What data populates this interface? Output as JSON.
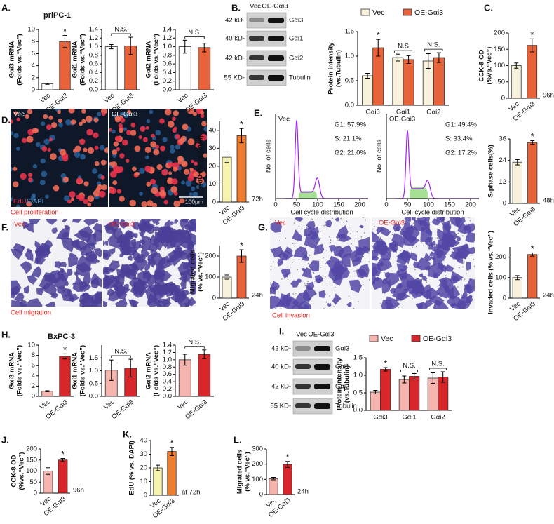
{
  "panel_labels": [
    "A.",
    "B.",
    "C.",
    "D.",
    "E.",
    "F.",
    "G.",
    "H.",
    "I.",
    "J.",
    "K.",
    "L."
  ],
  "cell_lines": [
    "priPC-1",
    "BxPC-3"
  ],
  "blots": [
    {
      "lanes": [
        "Vec",
        "OE-Gαi3"
      ],
      "sizes": [
        "42 kD-",
        "40 kD-",
        "42 kD-",
        "55 KD-"
      ],
      "proteins": [
        "Gαi3",
        "Gαi1",
        "Gαi2",
        "Tubulin"
      ]
    },
    {
      "lanes": [
        "Vec",
        "OE-Gαi3"
      ],
      "sizes": [
        "42 kD-",
        "40 kD-",
        "42 kD-",
        "55 KD-"
      ],
      "proteins": [
        "Gαi3",
        "Gαi1",
        "Gαi2",
        "Tubulin"
      ]
    }
  ],
  "images": {
    "edu": {
      "groups": [
        "Vec",
        "OE-Gαi3"
      ],
      "stain": [
        "EdU",
        "/DAPI"
      ],
      "scale": "100μm",
      "caption": "Cell proliferation"
    },
    "migration": {
      "groups": [
        "Vec",
        "OE-Gαi3"
      ],
      "caption": "Cell migration"
    },
    "invasion": {
      "groups": [
        "Vec",
        "OE-Gαi3"
      ],
      "caption": "Cell invasion"
    }
  },
  "flow": {
    "ylabel": "No. of cells",
    "xlabel": "Cell cycle distribution",
    "xlim": [
      0,
      220
    ],
    "xticks": [
      0,
      50,
      100,
      150,
      200
    ],
    "samples": [
      {
        "name": "Vec",
        "stats": [
          "G1: 57.9%",
          "S: 21.1%",
          "G2: 21.0%"
        ]
      },
      {
        "name": "OE-Gαi3",
        "stats": [
          "G1: 49.4%",
          "S: 33.4%",
          "G2: 17.2%"
        ]
      }
    ]
  },
  "chart_data": [
    {
      "type": "bar",
      "ylabel": [
        "Gαi3 mRNA",
        "(Folds vs.“Vec”)"
      ],
      "categories": [
        "Vec",
        "OE-Gαi3"
      ],
      "colors": [
        "#ffffff",
        "#e8623a"
      ],
      "values": [
        1,
        8
      ],
      "errors": [
        0.1,
        1
      ],
      "significance": "*",
      "ylim": [
        0,
        10
      ],
      "yticks": [
        0,
        2,
        4,
        6,
        8,
        10
      ]
    },
    {
      "type": "bar",
      "ylabel": [
        "Gαi1 mRNA",
        "(Folds vs.“Vec”)"
      ],
      "categories": [
        "Vec",
        "OE-Gαi3"
      ],
      "colors": [
        "#ffffff",
        "#e8623a"
      ],
      "values": [
        1,
        1.02
      ],
      "errors": [
        0.05,
        0.2
      ],
      "significance": "N.S.",
      "ylim": [
        0,
        1.4
      ],
      "yticks": [
        {
          "value": 0,
          "label": "0.0"
        },
        {
          "value": 0.2,
          "label": "0.2"
        },
        {
          "value": 0.4,
          "label": "0.4"
        },
        {
          "value": 0.6,
          "label": "0.6"
        },
        {
          "value": 0.8,
          "label": "0.8"
        },
        {
          "value": 1,
          "label": "1.0"
        },
        {
          "value": 1.2,
          "label": "1.2"
        },
        {
          "value": 1.4,
          "label": "1.4"
        }
      ]
    },
    {
      "type": "bar",
      "ylabel": [
        "Gαi2 mRNA",
        "(Folds vs.“Vec”)"
      ],
      "categories": [
        "Vec",
        "OE-Gαi3"
      ],
      "colors": [
        "#ffffff",
        "#e8623a"
      ],
      "values": [
        1,
        0.98
      ],
      "errors": [
        0.15,
        0.1
      ],
      "significance": "N.S.",
      "ylim": [
        0,
        1.4
      ],
      "yticks": [
        {
          "value": 0,
          "label": "0.0"
        },
        {
          "value": 0.2,
          "label": "0.2"
        },
        {
          "value": 0.4,
          "label": "0.4"
        },
        {
          "value": 0.6,
          "label": "0.6"
        },
        {
          "value": 0.8,
          "label": "0.8"
        },
        {
          "value": 1,
          "label": "1.0"
        },
        {
          "value": 1.2,
          "label": "1.2"
        },
        {
          "value": 1.4,
          "label": "1.4"
        }
      ]
    },
    {
      "type": "bar",
      "ylabel": [
        "Protein intensity",
        "(vs.Tubulin)"
      ],
      "categories": [
        "Gαi3",
        "Gαi1",
        "Gαi2"
      ],
      "series": [
        {
          "name": "Vec",
          "color": "#f8f1dc",
          "values": [
            0.6,
            0.97,
            0.9
          ],
          "errors": [
            0.05,
            0.07,
            0.15
          ]
        },
        {
          "name": "OE-Gαi3",
          "color": "#e8623a",
          "values": [
            1.17,
            0.93,
            0.97
          ],
          "errors": [
            0.17,
            0.08,
            0.1
          ]
        }
      ],
      "significance": [
        "*",
        "N.S",
        "N.S."
      ],
      "ylim": [
        0,
        1.5
      ],
      "yticks": [
        {
          "value": 0,
          "label": "0.0"
        },
        {
          "value": 0.5,
          "label": "0.5"
        },
        {
          "value": 1,
          "label": "1.0"
        },
        {
          "value": 1.5,
          "label": "1.5"
        }
      ]
    },
    {
      "type": "bar",
      "ylabel": [
        "CCK-8 OD",
        "(%vs.“Vec”)"
      ],
      "categories": [
        "Vec",
        "OE-Gαi3"
      ],
      "colors": [
        "#f8f1dc",
        "#e8623a"
      ],
      "values": [
        100,
        162
      ],
      "errors": [
        8,
        20
      ],
      "significance": "*",
      "note": "96h",
      "ylim": [
        0,
        200
      ],
      "yticks": [
        0,
        50,
        100,
        150,
        200
      ]
    },
    {
      "type": "bar",
      "ylabel": [
        "EdU (% vs.DAPI)"
      ],
      "categories": [
        "Vec",
        "OE-Gαi3"
      ],
      "colors": [
        "#f7f4b0",
        "#ee7d2f"
      ],
      "values": [
        25,
        37
      ],
      "errors": [
        3,
        4
      ],
      "significance": "*",
      "note": "72h",
      "ylim": [
        0,
        45
      ],
      "yticks": [
        0,
        10,
        20,
        30,
        40
      ]
    },
    {
      "type": "bar",
      "ylabel": [
        "S-phase cells(%)"
      ],
      "categories": [
        "Vec",
        "OE-Gαi3"
      ],
      "colors": [
        "#f8f1dc",
        "#e8623a"
      ],
      "values": [
        23,
        34
      ],
      "errors": [
        1.5,
        1
      ],
      "significance": "*",
      "note": "48h",
      "ylim": [
        0,
        36
      ],
      "yticks": [
        0,
        12,
        24,
        36
      ]
    },
    {
      "type": "bar",
      "ylabel": [
        "Migrated cells",
        "(% vs.“Vec”)"
      ],
      "categories": [
        "Vec",
        "OE-Gαi3"
      ],
      "colors": [
        "#f8f1dc",
        "#e8623a"
      ],
      "values": [
        100,
        200
      ],
      "errors": [
        10,
        30
      ],
      "significance": "*",
      "note": "24h",
      "ylim": [
        0,
        250
      ],
      "yticks": [
        0,
        100,
        200
      ]
    },
    {
      "type": "bar",
      "ylabel": [
        "Invaded cells (% vs.“Vec”)"
      ],
      "categories": [
        "Vec",
        "OE-Gαi3"
      ],
      "colors": [
        "#f8f1dc",
        "#e8623a"
      ],
      "values": [
        100,
        213
      ],
      "errors": [
        10,
        8
      ],
      "significance": "*",
      "note": "24h",
      "ylim": [
        0,
        250
      ],
      "yticks": [
        0,
        100,
        200
      ]
    },
    {
      "type": "bar",
      "ylabel": [
        "Gαi3 mRNA",
        "(Folds vs.“Vec”)"
      ],
      "categories": [
        "Vec",
        "OE-Gαi3"
      ],
      "colors": [
        "#f5b5ae",
        "#d8262a"
      ],
      "values": [
        1,
        7.8
      ],
      "errors": [
        0.1,
        0.5
      ],
      "significance": "*",
      "ylim": [
        0,
        10
      ],
      "yticks": [
        0,
        2,
        4,
        6,
        8,
        10
      ]
    },
    {
      "type": "bar",
      "ylabel": [
        "Gαi1 mRNA",
        "(Folds vs.“Vec”)"
      ],
      "categories": [
        "Vec",
        "OE-Gαi3"
      ],
      "colors": [
        "#f5b5ae",
        "#d8262a"
      ],
      "values": [
        1.02,
        1.1
      ],
      "errors": [
        0.4,
        0.35
      ],
      "significance": "N.S.",
      "ylim": [
        0,
        2
      ],
      "yticks": [
        {
          "value": 0,
          "label": "0.0"
        },
        {
          "value": 0.5,
          "label": "0.5"
        },
        {
          "value": 1,
          "label": "1.0"
        },
        {
          "value": 1.5,
          "label": "1.5"
        }
      ]
    },
    {
      "type": "bar",
      "ylabel": [
        "Gαi2 mRNA",
        "(Folds vs.“Vec”)"
      ],
      "categories": [
        "Vec",
        "OE-Gαi3"
      ],
      "colors": [
        "#f5b5ae",
        "#d8262a"
      ],
      "values": [
        1,
        1.15
      ],
      "errors": [
        0.15,
        0.12
      ],
      "significance": "N.S.",
      "ylim": [
        0,
        1.4
      ],
      "yticks": [
        {
          "value": 0,
          "label": "0.0"
        },
        {
          "value": 0.2,
          "label": "0.2"
        },
        {
          "value": 0.4,
          "label": "0.4"
        },
        {
          "value": 0.6,
          "label": "0.6"
        },
        {
          "value": 0.8,
          "label": "0.8"
        },
        {
          "value": 1,
          "label": "1.0"
        },
        {
          "value": 1.2,
          "label": "1.2"
        },
        {
          "value": 1.4,
          "label": "1.4"
        }
      ]
    },
    {
      "type": "bar",
      "ylabel": [
        "Protein intensity",
        "(vs.Tubulin)"
      ],
      "categories": [
        "Gαi3",
        "Gαi1",
        "Gαi2"
      ],
      "series": [
        {
          "name": "Vec",
          "color": "#f5b5ae",
          "values": [
            0.52,
            0.88,
            0.92
          ],
          "errors": [
            0.05,
            0.1,
            0.15
          ]
        },
        {
          "name": "OE-Gαi3",
          "color": "#d8262a",
          "values": [
            1.17,
            0.97,
            0.95
          ],
          "errors": [
            0.05,
            0.08,
            0.15
          ]
        }
      ],
      "significance": [
        "*",
        "N.S.",
        "N.S."
      ],
      "ylim": [
        0,
        1.5
      ],
      "yticks": [
        {
          "value": 0,
          "label": "0.0"
        },
        {
          "value": 0.5,
          "label": "0.5"
        },
        {
          "value": 1,
          "label": "1.0"
        },
        {
          "value": 1.5,
          "label": "1.5"
        }
      ]
    },
    {
      "type": "bar",
      "ylabel": [
        "CCK-8 OD",
        "(%vs.“Vec”)"
      ],
      "categories": [
        "Vec",
        "OE-Gαi3"
      ],
      "colors": [
        "#f5b5ae",
        "#d8262a"
      ],
      "values": [
        100,
        150
      ],
      "errors": [
        15,
        7
      ],
      "significance": "*",
      "note": "96h",
      "ylim": [
        0,
        200
      ],
      "yticks": [
        0,
        50,
        100,
        150,
        200
      ]
    },
    {
      "type": "bar",
      "ylabel": [
        "EdU (% vs. DAPI)"
      ],
      "categories": [
        "Vec",
        "OE-Gαi3"
      ],
      "colors": [
        "#f7f4b0",
        "#ee7d2f"
      ],
      "values": [
        20,
        32
      ],
      "errors": [
        2,
        3
      ],
      "significance": "*",
      "note": "at 72h",
      "ylim": [
        0,
        40
      ],
      "yticks": [
        0,
        10,
        20,
        30,
        40
      ]
    },
    {
      "type": "bar",
      "ylabel": [
        "Migrated cells",
        "(% vs.“Vec”)"
      ],
      "categories": [
        "Vec",
        "OE-Gαi3"
      ],
      "colors": [
        "#f5b5ae",
        "#d8262a"
      ],
      "values": [
        105,
        198
      ],
      "errors": [
        8,
        20
      ],
      "significance": "*",
      "note": "24h",
      "ylim": [
        0,
        300
      ],
      "yticks": [
        0,
        100,
        200,
        300
      ]
    }
  ]
}
